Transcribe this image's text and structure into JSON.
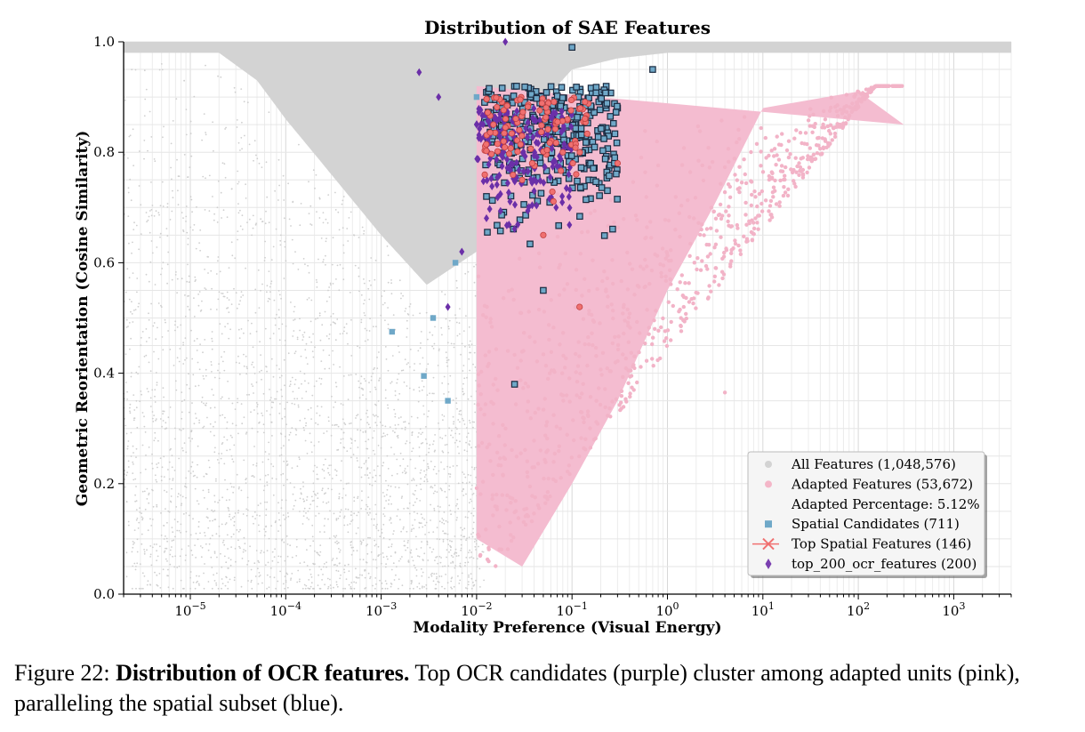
{
  "chart_data": {
    "type": "scatter",
    "title": "Distribution of SAE Features",
    "xlabel": "Modality Preference (Visual Energy)",
    "ylabel": "Geometric Reorientation (Cosine Similarity)",
    "xscale": "log",
    "xlim": [
      2e-06,
      4000
    ],
    "ylim": [
      0.0,
      1.0
    ],
    "x_ticks": [
      {
        "value": 1e-05,
        "base": "10",
        "exp": "−5"
      },
      {
        "value": 0.0001,
        "base": "10",
        "exp": "−4"
      },
      {
        "value": 0.001,
        "base": "10",
        "exp": "−3"
      },
      {
        "value": 0.01,
        "base": "10",
        "exp": "−2"
      },
      {
        "value": 0.1,
        "base": "10",
        "exp": "−1"
      },
      {
        "value": 1,
        "base": "10",
        "exp": "0"
      },
      {
        "value": 10,
        "base": "10",
        "exp": "1"
      },
      {
        "value": 100,
        "base": "10",
        "exp": "2"
      },
      {
        "value": 1000,
        "base": "10",
        "exp": "3"
      }
    ],
    "y_ticks": [
      {
        "value": 0.0,
        "label": "0.0"
      },
      {
        "value": 0.2,
        "label": "0.2"
      },
      {
        "value": 0.4,
        "label": "0.4"
      },
      {
        "value": 0.6,
        "label": "0.6"
      },
      {
        "value": 0.8,
        "label": "0.8"
      },
      {
        "value": 1.0,
        "label": "1.0"
      }
    ],
    "grid": true,
    "legend_position": "lower-right",
    "legend": [
      {
        "label": "All Features (1,048,576)",
        "marker": "circle",
        "color": "#d3d3d3"
      },
      {
        "label": "Adapted Features (53,672)",
        "marker": "circle",
        "color": "#f4b6c8"
      },
      {
        "label": "Adapted Percentage: 5.12%",
        "marker": "none",
        "color": "#ffffff"
      },
      {
        "label": "Spatial Candidates (711)",
        "marker": "square",
        "color": "#6fa8c8"
      },
      {
        "label": "Top Spatial Features (146)",
        "marker": "x-line",
        "color": "#f07070"
      },
      {
        "label": "top_200_ocr_features (200)",
        "marker": "diamond",
        "color": "#7a3fb0"
      }
    ],
    "series": [
      {
        "name": "All Features (1,048,576)",
        "color": "#d3d3d3",
        "marker": "circle",
        "x": [
          2e-05,
          5e-05,
          0.0001,
          0.0003,
          0.001,
          0.003,
          0.01,
          0.03,
          0.1,
          0.3,
          1,
          10,
          100,
          1000
        ],
        "y": [
          0.98,
          0.93,
          0.86,
          0.76,
          0.65,
          0.56,
          0.62,
          0.85,
          0.95,
          0.97,
          0.98,
          0.98,
          0.98,
          0.98
        ]
      },
      {
        "name": "Adapted Features (53,672)",
        "color": "#f4b6c8",
        "marker": "circle",
        "x": [
          0.01,
          0.01,
          0.03,
          0.1,
          0.3,
          1,
          3,
          10,
          100,
          300,
          4
        ],
        "y": [
          0.92,
          0.1,
          0.05,
          0.2,
          0.35,
          0.55,
          0.7,
          0.88,
          0.91,
          0.85,
          0.365
        ]
      },
      {
        "name": "Spatial Candidates (711)",
        "color": "#6fa8c8",
        "marker": "square",
        "x": [
          0.0013,
          0.0028,
          0.0035,
          0.005,
          0.006,
          0.01,
          0.025,
          0.05,
          0.1,
          0.3,
          0.7,
          0.15
        ],
        "y": [
          0.475,
          0.395,
          0.5,
          0.35,
          0.6,
          0.9,
          0.38,
          0.55,
          0.99,
          0.88,
          0.95,
          0.75
        ]
      },
      {
        "name": "Top Spatial Features (146)",
        "color": "#f07070",
        "marker": "x",
        "x": [
          0.015,
          0.03,
          0.05,
          0.08,
          0.12,
          0.3
        ],
        "y": [
          0.85,
          0.75,
          0.65,
          0.8,
          0.52,
          0.78
        ]
      },
      {
        "name": "top_200_ocr_features (200)",
        "color": "#7a3fb0",
        "marker": "diamond",
        "x": [
          0.0025,
          0.004,
          0.005,
          0.007,
          0.01,
          0.02,
          0.04,
          0.08,
          0.02
        ],
        "y": [
          0.945,
          0.9,
          0.52,
          0.62,
          0.85,
          0.82,
          0.75,
          0.8,
          1.0
        ]
      }
    ]
  },
  "caption": {
    "label": "Figure 22:",
    "bold": "Distribution of OCR features.",
    "text": "Top OCR candidates (purple) cluster among adapted units (pink), paralleling the spatial subset (blue)."
  }
}
